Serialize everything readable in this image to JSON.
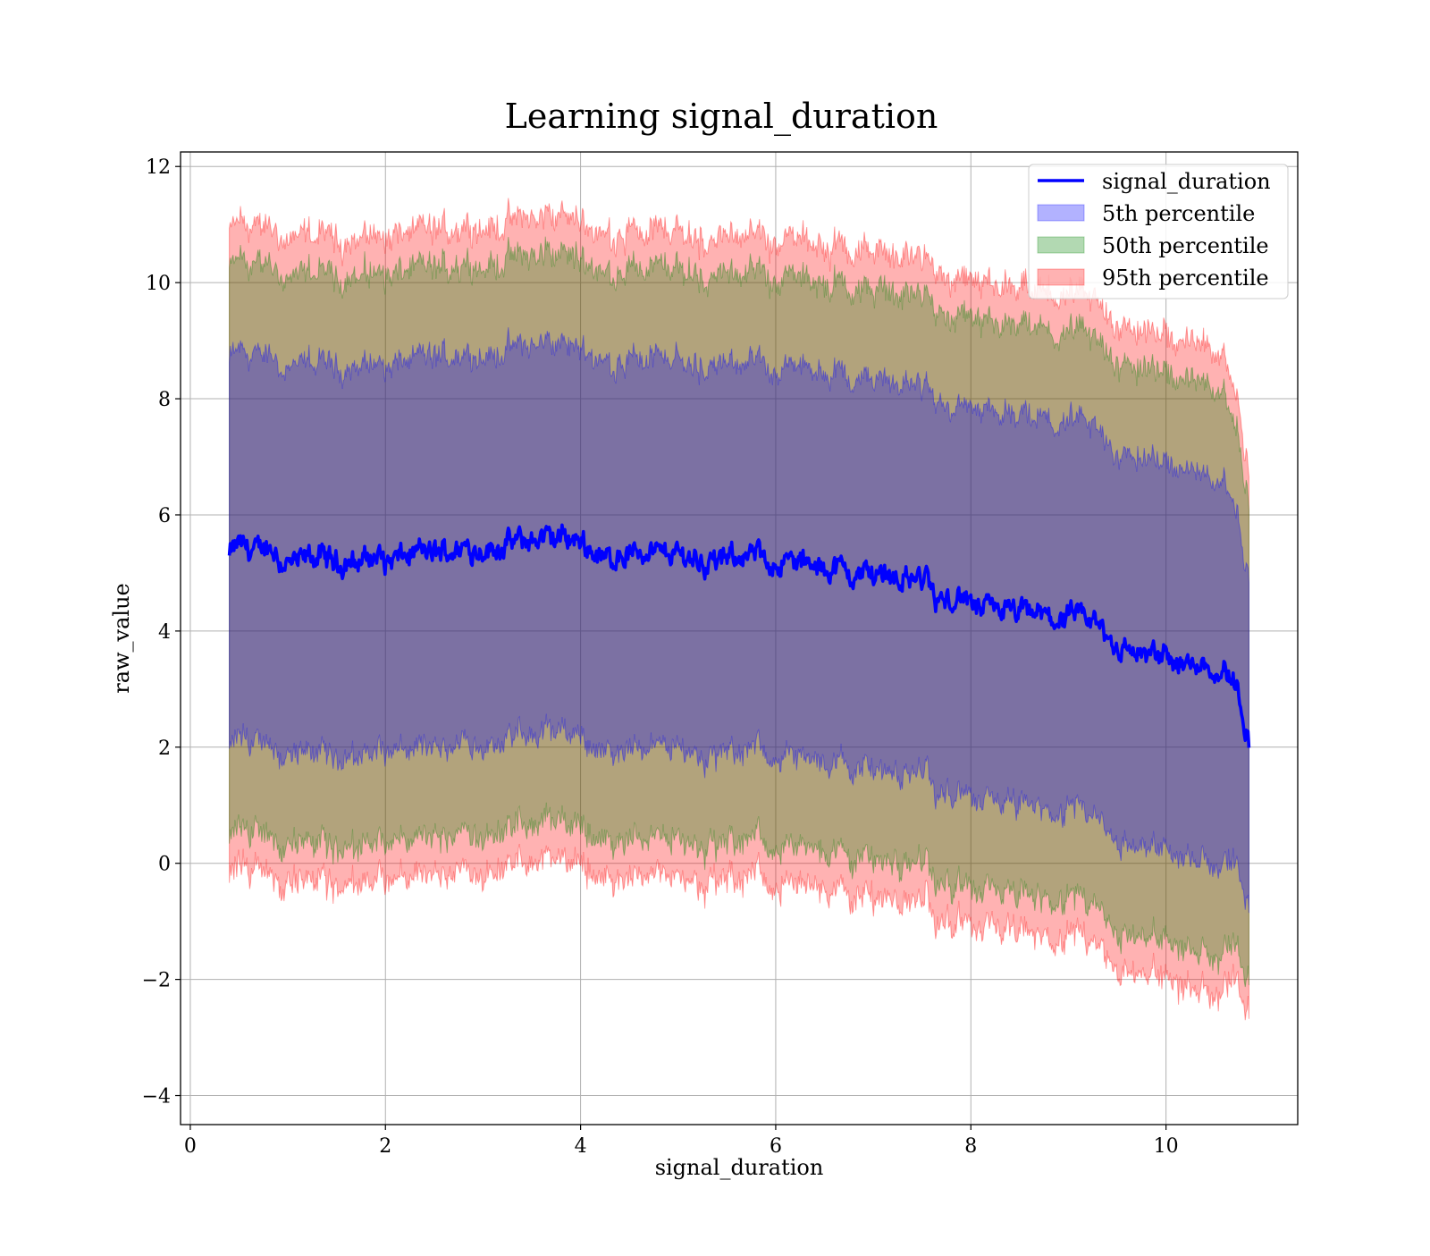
{
  "chart_data": {
    "type": "area",
    "title": "Learning signal_duration",
    "xlabel": "signal_duration",
    "ylabel": "raw_value",
    "xlim": [
      -0.1,
      11.35
    ],
    "ylim": [
      -4.5,
      12.25
    ],
    "xticks": [
      0,
      2,
      4,
      6,
      8,
      10
    ],
    "yticks": [
      -4,
      -2,
      0,
      2,
      4,
      6,
      8,
      10,
      12
    ],
    "xtick_labels": [
      "0",
      "2",
      "4",
      "6",
      "8",
      "10"
    ],
    "ytick_labels": [
      "−4",
      "−2",
      "0",
      "2",
      "4",
      "6",
      "8",
      "10",
      "12"
    ],
    "grid": true,
    "legend_position": "top-right",
    "x_range": [
      0.4,
      10.85
    ],
    "step_x": 7.6,
    "mean_anchors": [
      [
        0.4,
        5.3
      ],
      [
        0.5,
        5.5
      ],
      [
        0.8,
        5.4
      ],
      [
        1.0,
        5.2
      ],
      [
        1.2,
        5.3
      ],
      [
        1.5,
        5.2
      ],
      [
        1.8,
        5.3
      ],
      [
        2.0,
        5.2
      ],
      [
        2.3,
        5.3
      ],
      [
        2.6,
        5.4
      ],
      [
        2.9,
        5.45
      ],
      [
        3.2,
        5.45
      ],
      [
        3.5,
        5.55
      ],
      [
        3.8,
        5.6
      ],
      [
        4.0,
        5.45
      ],
      [
        4.3,
        5.3
      ],
      [
        4.6,
        5.4
      ],
      [
        5.0,
        5.2
      ],
      [
        5.3,
        5.25
      ],
      [
        5.7,
        5.3
      ],
      [
        6.0,
        5.2
      ],
      [
        6.3,
        5.15
      ],
      [
        6.6,
        5.05
      ],
      [
        7.0,
        5.0
      ],
      [
        7.3,
        4.9
      ],
      [
        7.59,
        4.85
      ],
      [
        7.62,
        4.6
      ],
      [
        8.0,
        4.4
      ],
      [
        8.5,
        4.2
      ],
      [
        9.0,
        4.15
      ],
      [
        9.3,
        4.05
      ],
      [
        9.6,
        3.65
      ],
      [
        10.0,
        3.55
      ],
      [
        10.3,
        3.5
      ],
      [
        10.6,
        3.35
      ],
      [
        10.75,
        2.9
      ],
      [
        10.85,
        2.05
      ]
    ],
    "series": [
      {
        "name": "signal_duration",
        "kind": "line",
        "color": "#0000ff"
      },
      {
        "name": "5th percentile",
        "kind": "band",
        "color": "#0000ff",
        "offsets": [
          -3.35,
          3.35
        ]
      },
      {
        "name": "50th percentile",
        "kind": "band",
        "color": "#008000",
        "offsets": [
          -4.9,
          4.9
        ]
      },
      {
        "name": "95th percentile",
        "kind": "band",
        "color": "#ff0000",
        "offsets": [
          -5.55,
          5.55
        ]
      }
    ]
  }
}
